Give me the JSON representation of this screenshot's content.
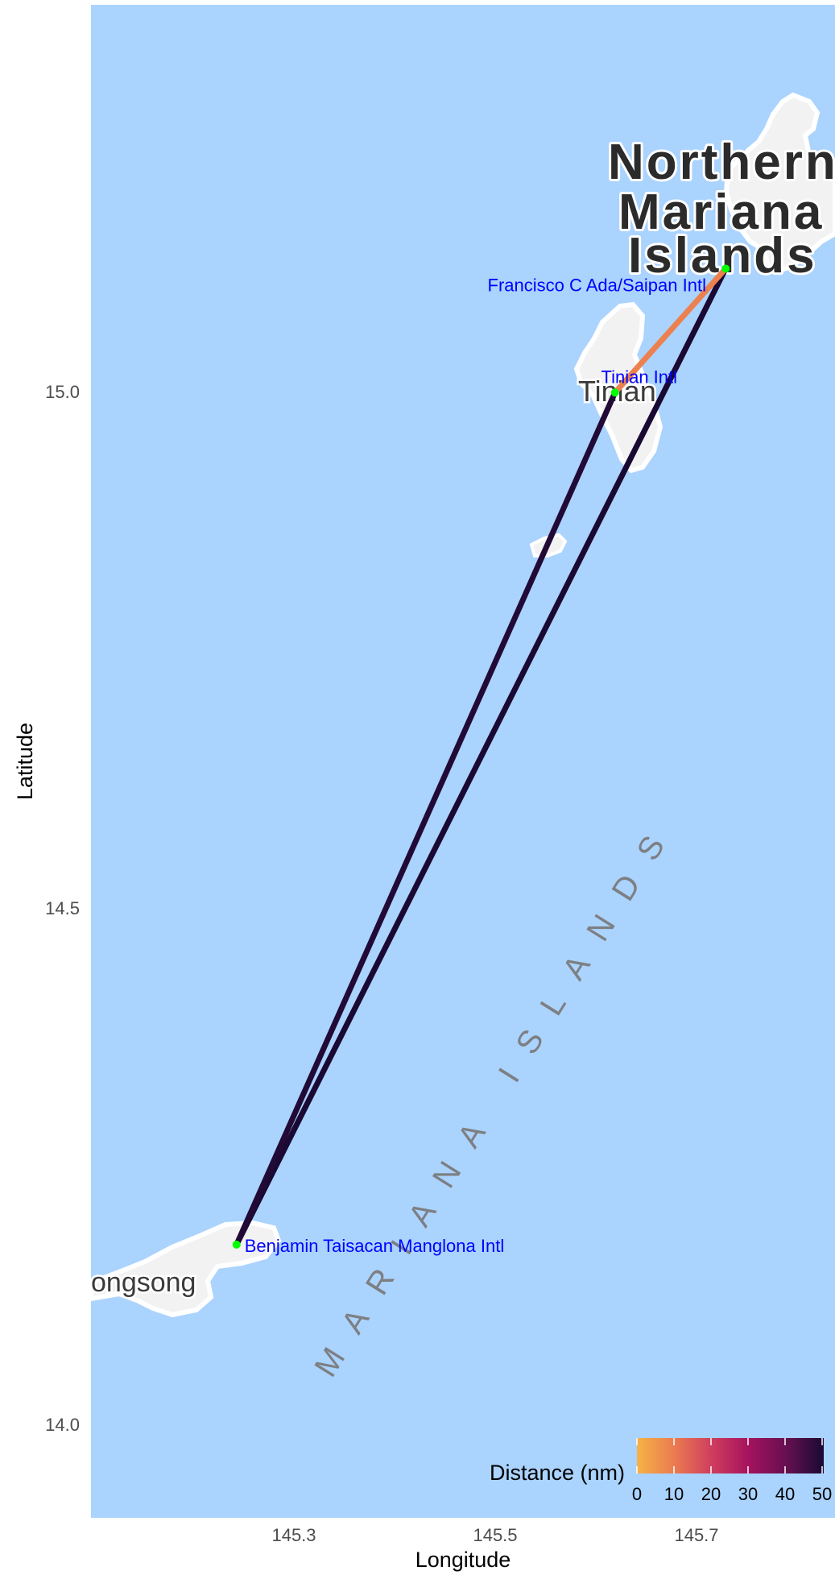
{
  "x_axis": {
    "title": "Longitude",
    "ticks": [
      {
        "value": 145.3,
        "label": "145.3"
      },
      {
        "value": 145.5,
        "label": "145.5"
      },
      {
        "value": 145.7,
        "label": "145.7"
      }
    ]
  },
  "y_axis": {
    "title": "Latitude",
    "ticks": [
      {
        "value": 15.0,
        "label": "15.0"
      },
      {
        "value": 14.5,
        "label": "14.5"
      },
      {
        "value": 14.0,
        "label": "14.0"
      }
    ]
  },
  "map_labels": {
    "region_line_1": "Northern",
    "region_line_2": "Mariana",
    "region_line_3": "Islands",
    "island_tinian": "Tinian",
    "village_songsong": "ongsong",
    "chain_name": "MARIANA ISLANDS"
  },
  "airports": [
    {
      "id": "saipan",
      "name": "Francisco C Ada/Saipan Intl",
      "lon": 145.729,
      "lat": 15.119
    },
    {
      "id": "tinian",
      "name": "Tinian Intl",
      "lon": 145.619,
      "lat": 14.999
    },
    {
      "id": "rota",
      "name": "Benjamin Taisacan Manglona Intl",
      "lon": 145.243,
      "lat": 14.174
    }
  ],
  "routes": [
    {
      "from": "saipan",
      "to": "tinian",
      "distance_nm": 9
    },
    {
      "from": "tinian",
      "to": "rota",
      "distance_nm": 49
    },
    {
      "from": "saipan",
      "to": "rota",
      "distance_nm": 57
    }
  ],
  "legend": {
    "title": "Distance (nm)",
    "ticks": [
      "0",
      "10",
      "20",
      "30",
      "40",
      "50"
    ],
    "min": 0,
    "max": 50
  },
  "colors": {
    "water": "#aad3fe",
    "land": "#f2f2f2",
    "airport_point": "#00ff00",
    "airport_label": "#0000ff"
  }
}
